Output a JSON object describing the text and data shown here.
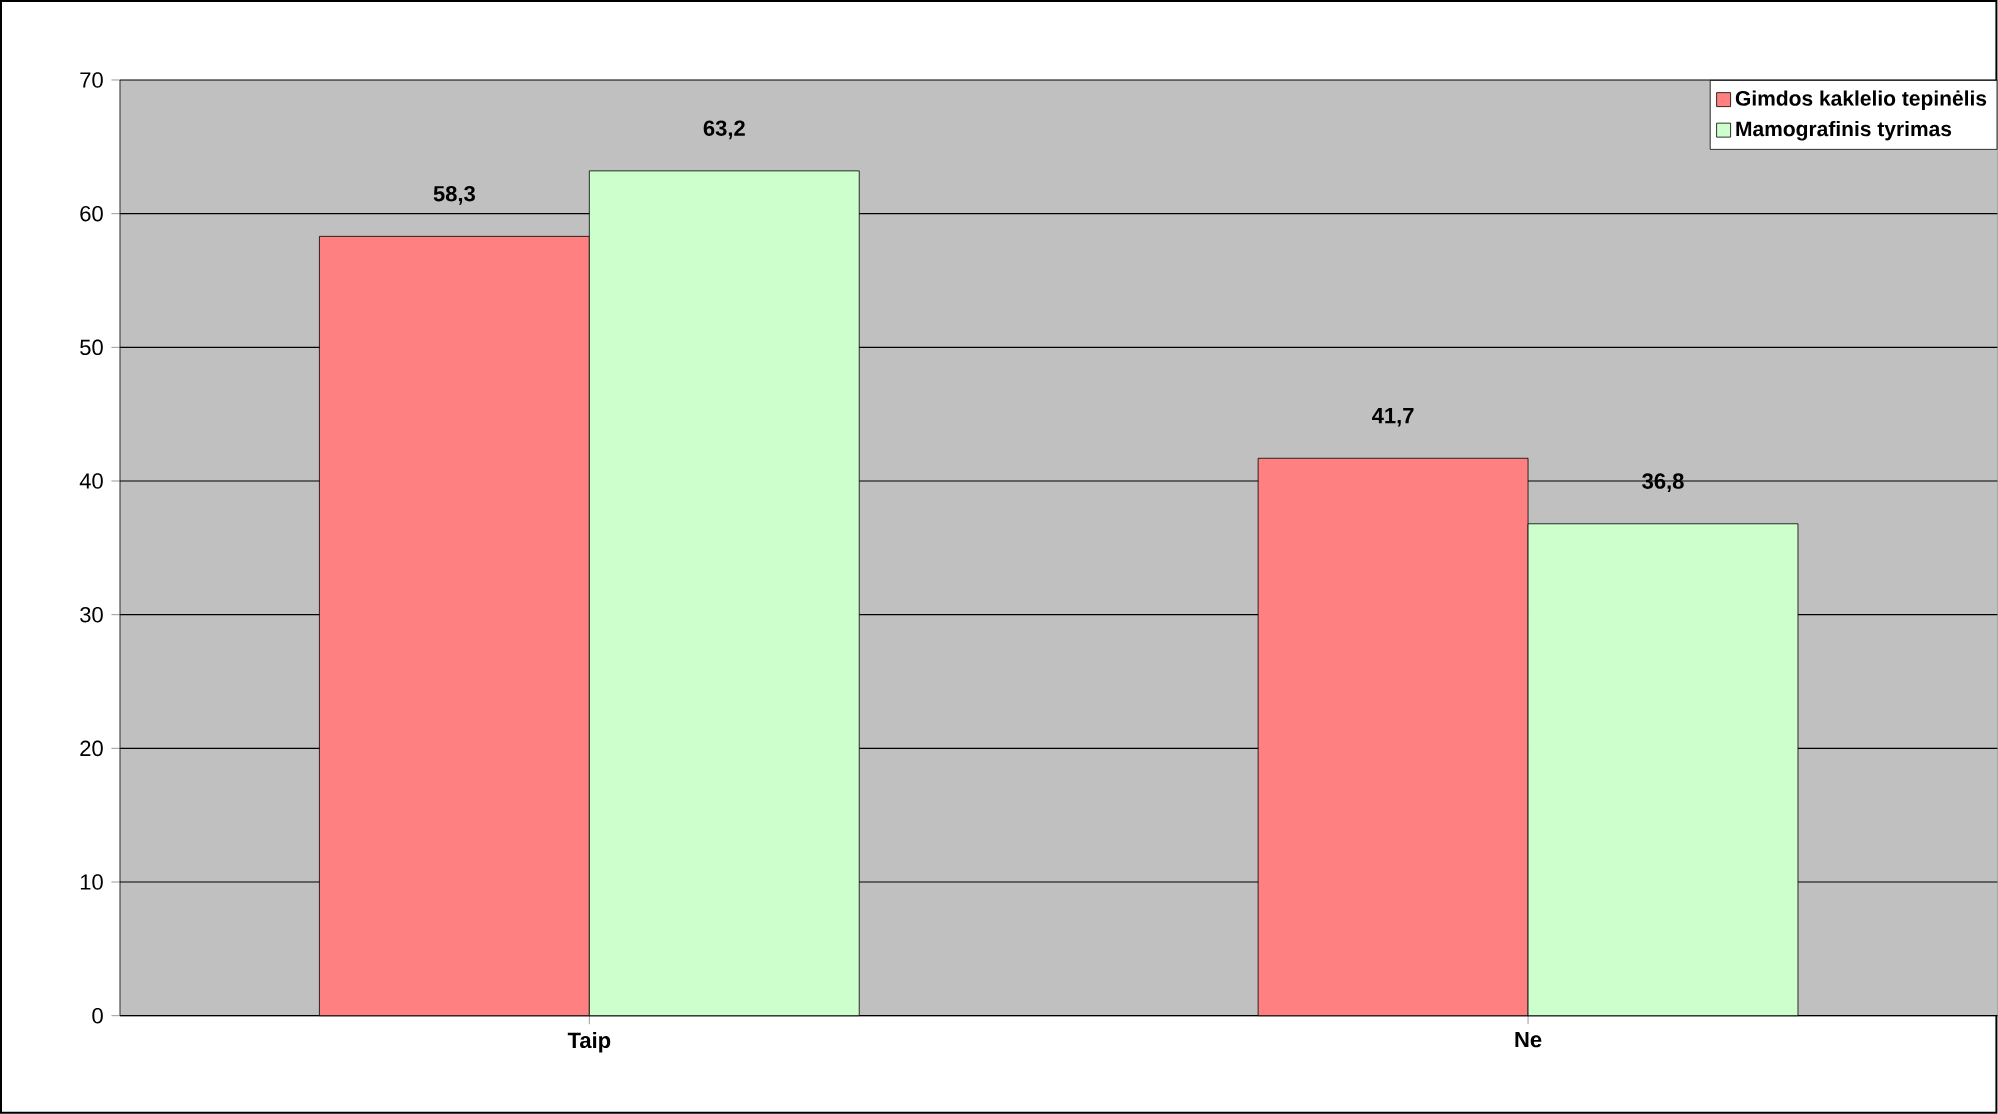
{
  "chart_data": {
    "type": "bar",
    "categories": [
      "Taip",
      "Ne"
    ],
    "series": [
      {
        "name": "Gimdos kaklelio tepinėlis",
        "color": "#ff8080",
        "values": [
          58.3,
          41.7
        ],
        "value_labels": [
          "58,3",
          "41,7"
        ]
      },
      {
        "name": "Mamografinis tyrimas",
        "color": "#ccffcc",
        "values": [
          63.2,
          36.8
        ],
        "value_labels": [
          "63,2",
          "36,8"
        ]
      }
    ],
    "ylim": [
      0,
      70
    ],
    "yticks": [
      0,
      10,
      20,
      30,
      40,
      50,
      60,
      70
    ],
    "grid": "y",
    "legend": "top right"
  }
}
